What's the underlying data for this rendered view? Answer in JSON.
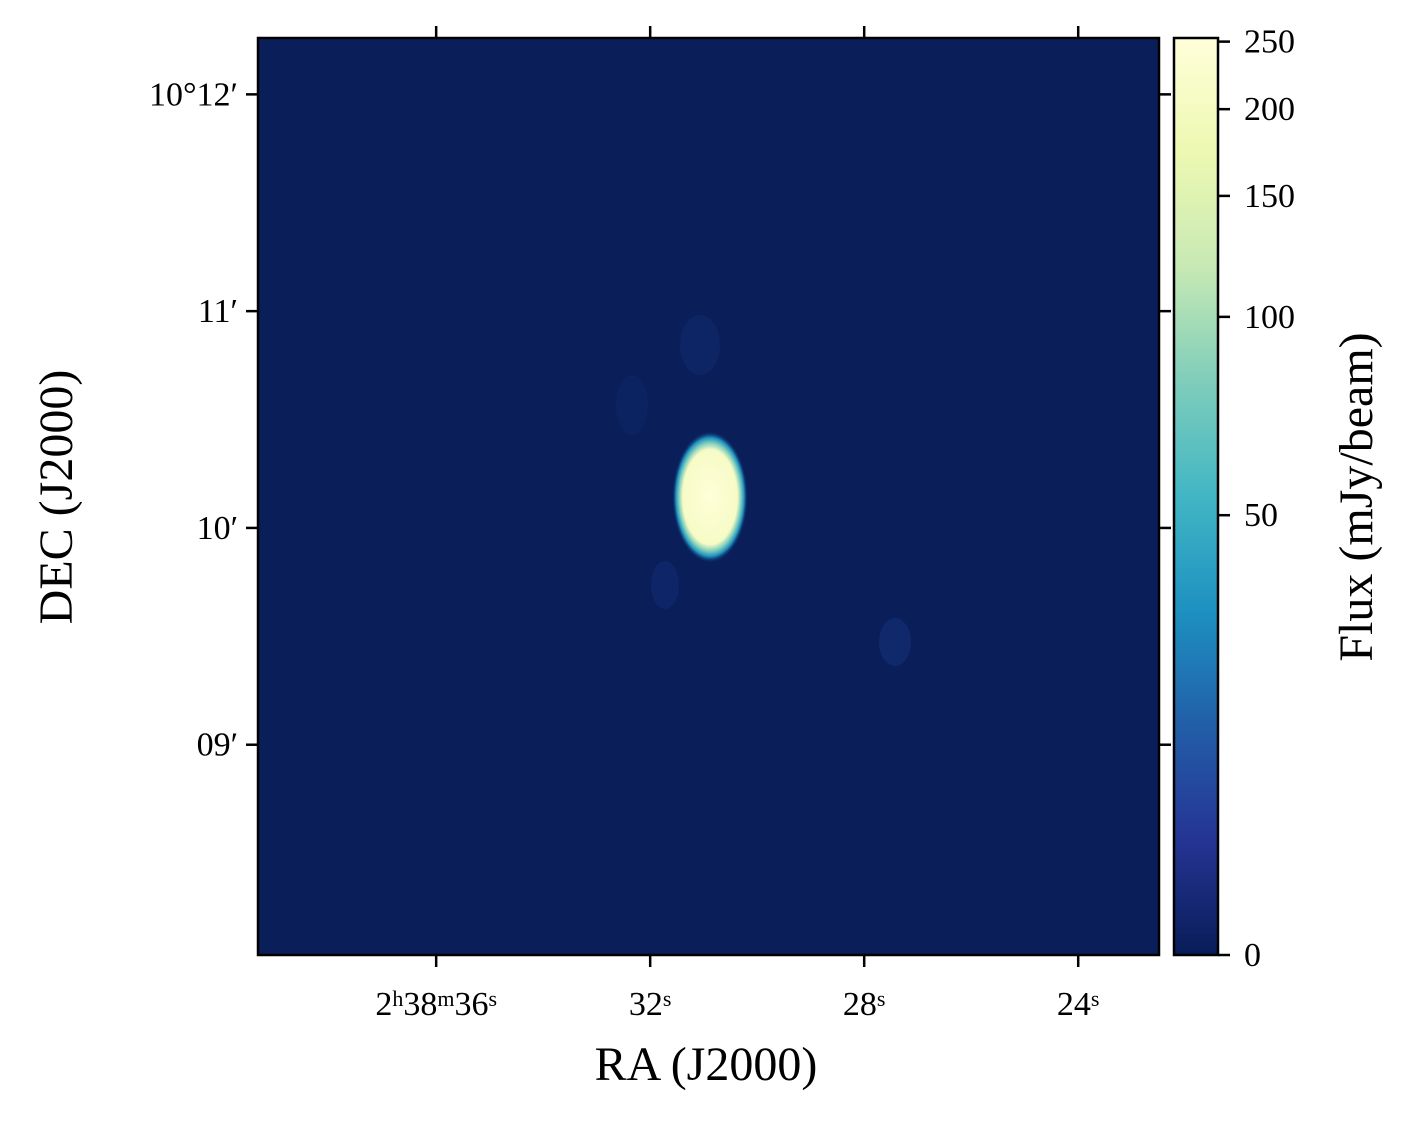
{
  "chart_data": {
    "type": "image",
    "xlabel": "RA (J2000)",
    "ylabel": "DEC (J2000)",
    "colorbar_label": "Flux (mJy/beam)",
    "xlim": [
      39.33,
      22.49
    ],
    "xticks": [
      {
        "value": 36,
        "label": "2h38m36s"
      },
      {
        "value": 32,
        "label": "32s"
      },
      {
        "value": 28,
        "label": "28s"
      },
      {
        "value": 24,
        "label": "24s"
      }
    ],
    "ylim": [
      8.03,
      12.26
    ],
    "yticks": [
      {
        "value": 12,
        "label": "10°12′"
      },
      {
        "value": 11,
        "label": "11′"
      },
      {
        "value": 10,
        "label": "10′"
      },
      {
        "value": 9,
        "label": "09′"
      }
    ],
    "clim": [
      0,
      253
    ],
    "colorbar_ticks": [
      0,
      50,
      100,
      150,
      200,
      250
    ],
    "colorbar_stretch": {
      "type": "asinh",
      "a": 25
    },
    "background_color": "#0a1e5a",
    "colormap": [
      "#081d58",
      "#253494",
      "#225ea8",
      "#1d91c0",
      "#41b6c4",
      "#7fcdbb",
      "#c7e9b4",
      "#edf8b1",
      "#ffffd9"
    ]
  }
}
